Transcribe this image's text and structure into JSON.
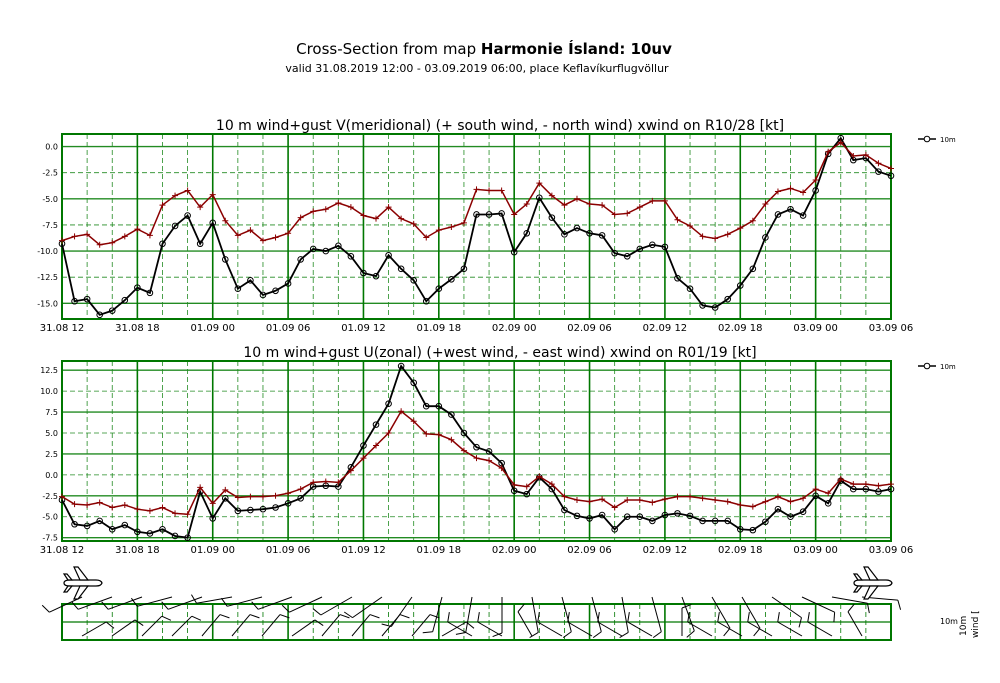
{
  "header": {
    "title_prefix": "Cross-Section from map ",
    "title_bold": "Harmonie Ísland: 10uv",
    "subtitle": "valid 31.08.2019 12:00 - 03.09.2019 06:00, place Keflavíkurflugvöllur"
  },
  "colors": {
    "frame": "#007700",
    "grid": "#228b22",
    "wind": "#000000",
    "gust": "#8b0000"
  },
  "chart_data": [
    {
      "type": "line",
      "title": "10 m wind+gust V(meridional) (+ south wind, - north wind) xwind on R10/28 [kt]",
      "legend": "10m",
      "legend_position": "right",
      "grid": true,
      "ylim": [
        -16.5,
        1.2
      ],
      "y_ticks": [
        "0.0",
        "-2.5",
        "-5.0",
        "-7.5",
        "-10.0",
        "-12.5",
        "-15.0"
      ],
      "y_tick_values": [
        0,
        -2.5,
        -5,
        -7.5,
        -10,
        -12.5,
        -15
      ],
      "x_ticks": [
        "31.08 12",
        "31.08 18",
        "01.09 00",
        "01.09 06",
        "01.09 12",
        "01.09 18",
        "02.09 00",
        "02.09 06",
        "02.09 12",
        "02.09 18",
        "03.09 00",
        "03.09 06"
      ],
      "x_hours": [
        0,
        1,
        2,
        3,
        4,
        5,
        6,
        7,
        8,
        9,
        10,
        11,
        12,
        13,
        14,
        15,
        16,
        17,
        18,
        19,
        20,
        21,
        22,
        23,
        24,
        25,
        26,
        27,
        28,
        29,
        30,
        31,
        32,
        33,
        34,
        35,
        36,
        37,
        38,
        39,
        40,
        41,
        42,
        43,
        44,
        45,
        46,
        47,
        48,
        49,
        50,
        51,
        52,
        53,
        54,
        55,
        56,
        57,
        58,
        59,
        60,
        61,
        62,
        63,
        64,
        65,
        66
      ],
      "series": [
        {
          "role": "wind",
          "name": "10m",
          "marker": "circle",
          "values": [
            -9.3,
            -14.8,
            -14.6,
            -16.1,
            -15.7,
            -14.7,
            -13.5,
            -14.0,
            -9.3,
            -7.6,
            -6.6,
            -9.3,
            -7.3,
            -10.8,
            -13.6,
            -12.8,
            -14.2,
            -13.8,
            -13.1,
            -10.8,
            -9.8,
            -10.0,
            -9.5,
            -10.5,
            -12.1,
            -12.4,
            -10.4,
            -11.7,
            -12.8,
            -14.8,
            -13.6,
            -12.7,
            -11.7,
            -6.5,
            -6.5,
            -6.4,
            -10.1,
            -8.3,
            -4.9,
            -6.8,
            -8.4,
            -7.8,
            -8.3,
            -8.5,
            -10.2,
            -10.5,
            -9.8,
            -9.4,
            -9.6,
            -12.6,
            -13.6,
            -15.2,
            -15.4,
            -14.6,
            -13.3,
            -11.7,
            -8.7,
            -6.5,
            -6.0,
            -6.6,
            -4.2,
            -0.7,
            0.8,
            -1.3,
            -1.1,
            -2.4,
            -2.8
          ]
        },
        {
          "role": "gust",
          "marker": "plus",
          "values": [
            -9.0,
            -8.6,
            -8.4,
            -9.4,
            -9.2,
            -8.6,
            -7.9,
            -8.5,
            -5.6,
            -4.7,
            -4.2,
            -5.8,
            -4.6,
            -7.1,
            -8.5,
            -8.0,
            -9.0,
            -8.7,
            -8.3,
            -6.8,
            -6.2,
            -6.0,
            -5.4,
            -5.8,
            -6.6,
            -6.9,
            -5.8,
            -6.9,
            -7.4,
            -8.7,
            -8.0,
            -7.7,
            -7.3,
            -4.1,
            -4.2,
            -4.2,
            -6.5,
            -5.5,
            -3.5,
            -4.7,
            -5.6,
            -5.0,
            -5.5,
            -5.6,
            -6.5,
            -6.4,
            -5.8,
            -5.2,
            -5.2,
            -7.0,
            -7.6,
            -8.6,
            -8.8,
            -8.4,
            -7.8,
            -7.1,
            -5.5,
            -4.3,
            -4.0,
            -4.4,
            -3.2,
            -0.5,
            0.4,
            -0.9,
            -0.8,
            -1.6,
            -2.1
          ]
        }
      ]
    },
    {
      "type": "line",
      "title": "10 m wind+gust U(zonal) (+west wind, - east wind) xwind on R01/19 [kt]",
      "legend": "10m",
      "legend_position": "right",
      "grid": true,
      "ylim": [
        -7.9,
        13.6
      ],
      "y_ticks": [
        "12.5",
        "10.0",
        "7.5",
        "5.0",
        "2.5",
        "0.0",
        "-2.5",
        "-5.0",
        "-7.5"
      ],
      "y_tick_values": [
        12.5,
        10,
        7.5,
        5,
        2.5,
        0,
        -2.5,
        -5,
        -7.5
      ],
      "x_ticks": [
        "31.08 12",
        "31.08 18",
        "01.09 00",
        "01.09 06",
        "01.09 12",
        "01.09 18",
        "02.09 00",
        "02.09 06",
        "02.09 12",
        "02.09 18",
        "03.09 00",
        "03.09 06"
      ],
      "x_hours": [
        0,
        1,
        2,
        3,
        4,
        5,
        6,
        7,
        8,
        9,
        10,
        11,
        12,
        13,
        14,
        15,
        16,
        17,
        18,
        19,
        20,
        21,
        22,
        23,
        24,
        25,
        26,
        27,
        28,
        29,
        30,
        31,
        32,
        33,
        34,
        35,
        36,
        37,
        38,
        39,
        40,
        41,
        42,
        43,
        44,
        45,
        46,
        47,
        48,
        49,
        50,
        51,
        52,
        53,
        54,
        55,
        56,
        57,
        58,
        59,
        60,
        61,
        62,
        63,
        64,
        65,
        66
      ],
      "series": [
        {
          "role": "wind",
          "name": "10m",
          "marker": "circle",
          "values": [
            -3.0,
            -5.9,
            -6.1,
            -5.5,
            -6.5,
            -6.0,
            -6.8,
            -7.0,
            -6.5,
            -7.3,
            -7.5,
            -2.0,
            -5.2,
            -2.8,
            -4.3,
            -4.2,
            -4.1,
            -3.9,
            -3.4,
            -2.8,
            -1.4,
            -1.3,
            -1.4,
            0.9,
            3.5,
            6.0,
            8.5,
            13.0,
            11.0,
            8.2,
            8.2,
            7.2,
            5.0,
            3.3,
            2.8,
            1.4,
            -1.9,
            -2.3,
            -0.3,
            -1.7,
            -4.2,
            -4.9,
            -5.2,
            -4.8,
            -6.5,
            -5.0,
            -5.0,
            -5.5,
            -4.8,
            -4.6,
            -4.9,
            -5.5,
            -5.5,
            -5.5,
            -6.5,
            -6.6,
            -5.6,
            -4.1,
            -5.0,
            -4.4,
            -2.5,
            -3.4,
            -0.7,
            -1.7,
            -1.7,
            -2.0,
            -1.7
          ]
        },
        {
          "role": "gust",
          "marker": "plus",
          "values": [
            -2.6,
            -3.5,
            -3.6,
            -3.3,
            -3.9,
            -3.6,
            -4.1,
            -4.3,
            -3.9,
            -4.6,
            -4.7,
            -1.5,
            -3.4,
            -1.8,
            -2.7,
            -2.6,
            -2.6,
            -2.5,
            -2.2,
            -1.7,
            -0.9,
            -0.8,
            -0.9,
            0.5,
            2.0,
            3.5,
            5.0,
            7.6,
            6.4,
            4.9,
            4.8,
            4.2,
            2.9,
            2.0,
            1.7,
            0.8,
            -1.2,
            -1.4,
            -0.2,
            -1.1,
            -2.6,
            -3.0,
            -3.2,
            -2.9,
            -3.9,
            -3.0,
            -3.0,
            -3.3,
            -2.9,
            -2.6,
            -2.6,
            -2.8,
            -3.0,
            -3.2,
            -3.6,
            -3.8,
            -3.2,
            -2.6,
            -3.2,
            -2.8,
            -1.7,
            -2.2,
            -0.5,
            -1.1,
            -1.1,
            -1.3,
            -1.1
          ]
        }
      ]
    }
  ],
  "barbs": {
    "label_top": "10m",
    "label_side": "wind [",
    "upper_row_directions_deg": [
      245,
      250,
      250,
      255,
      250,
      260,
      255,
      250,
      245,
      240,
      235,
      215,
      195,
      190,
      180,
      170,
      165,
      165,
      170,
      165,
      160,
      150,
      150,
      125,
      115,
      100,
      95
    ],
    "lower_row_directions_deg": [
      60,
      55,
      45,
      45,
      40,
      40,
      40,
      55,
      40,
      40,
      40,
      40,
      60,
      300,
      300,
      330,
      300,
      300,
      300,
      300,
      0,
      300,
      300,
      300,
      300,
      300,
      330
    ]
  }
}
